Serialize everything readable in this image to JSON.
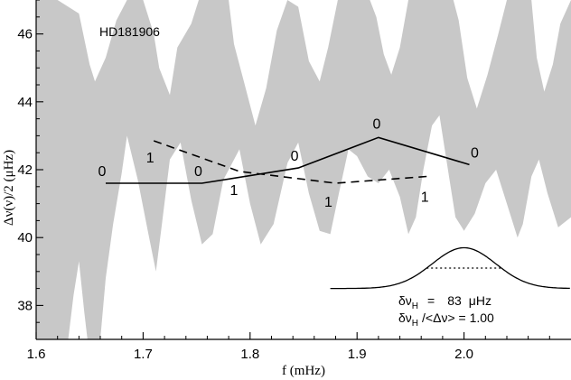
{
  "chart_data": {
    "type": "line",
    "title": "HD181906",
    "xlabel": "f (mHz)",
    "ylabel": "Δν(ν)/2 (μHz)",
    "xlim": [
      1.6,
      2.1
    ],
    "ylim": [
      37.0,
      47.0
    ],
    "x_ticks": [
      1.6,
      1.7,
      1.8,
      1.9,
      2.0
    ],
    "x_tick_labels": [
      "1.6",
      "1.7",
      "1.8",
      "1.9",
      "2.0"
    ],
    "y_ticks": [
      38,
      40,
      42,
      44,
      46
    ],
    "y_tick_labels": [
      "38",
      "40",
      "42",
      "44",
      "46"
    ],
    "shaded_band": {
      "color": "#c8c8c8",
      "upper": [
        [
          1.6,
          47.0
        ],
        [
          1.62,
          47.0
        ],
        [
          1.64,
          46.6
        ],
        [
          1.65,
          45.1
        ],
        [
          1.655,
          44.6
        ],
        [
          1.665,
          45.3
        ],
        [
          1.675,
          46.4
        ],
        [
          1.685,
          47.0
        ],
        [
          1.7,
          47.0
        ],
        [
          1.71,
          46.0
        ],
        [
          1.715,
          45.0
        ],
        [
          1.725,
          44.2
        ],
        [
          1.732,
          45.6
        ],
        [
          1.745,
          46.3
        ],
        [
          1.752,
          47.0
        ],
        [
          1.78,
          47.0
        ],
        [
          1.785,
          45.7
        ],
        [
          1.795,
          44.5
        ],
        [
          1.805,
          43.3
        ],
        [
          1.815,
          44.4
        ],
        [
          1.825,
          46.1
        ],
        [
          1.835,
          47.0
        ],
        [
          1.845,
          46.8
        ],
        [
          1.855,
          45.2
        ],
        [
          1.865,
          44.6
        ],
        [
          1.873,
          45.6
        ],
        [
          1.882,
          47.0
        ],
        [
          1.912,
          47.0
        ],
        [
          1.918,
          46.5
        ],
        [
          1.925,
          45.4
        ],
        [
          1.932,
          44.8
        ],
        [
          1.94,
          45.6
        ],
        [
          1.948,
          47.0
        ],
        [
          1.99,
          47.0
        ],
        [
          1.995,
          46.4
        ],
        [
          2.003,
          44.7
        ],
        [
          2.012,
          43.8
        ],
        [
          2.022,
          44.8
        ],
        [
          2.032,
          46.0
        ],
        [
          2.04,
          47.0
        ],
        [
          2.063,
          47.0
        ],
        [
          2.068,
          45.3
        ],
        [
          2.075,
          44.3
        ],
        [
          2.083,
          45.1
        ],
        [
          2.09,
          46.3
        ],
        [
          2.1,
          47.0
        ]
      ],
      "lower": [
        [
          1.6,
          37.0
        ],
        [
          1.63,
          37.0
        ],
        [
          1.635,
          38.3
        ],
        [
          1.64,
          39.3
        ],
        [
          1.645,
          37.8
        ],
        [
          1.648,
          37.0
        ],
        [
          1.66,
          37.0
        ],
        [
          1.665,
          38.8
        ],
        [
          1.672,
          40.4
        ],
        [
          1.68,
          41.9
        ],
        [
          1.685,
          43.0
        ],
        [
          1.695,
          41.7
        ],
        [
          1.705,
          40.1
        ],
        [
          1.712,
          39.0
        ],
        [
          1.718,
          40.5
        ],
        [
          1.725,
          42.3
        ],
        [
          1.735,
          42.8
        ],
        [
          1.745,
          41.1
        ],
        [
          1.755,
          39.8
        ],
        [
          1.765,
          40.1
        ],
        [
          1.775,
          41.7
        ],
        [
          1.79,
          42.6
        ],
        [
          1.8,
          41.0
        ],
        [
          1.81,
          39.8
        ],
        [
          1.822,
          40.4
        ],
        [
          1.835,
          42.2
        ],
        [
          1.845,
          42.8
        ],
        [
          1.855,
          41.3
        ],
        [
          1.865,
          40.2
        ],
        [
          1.875,
          40.1
        ],
        [
          1.883,
          41.3
        ],
        [
          1.892,
          42.6
        ],
        [
          1.9,
          42.4
        ],
        [
          1.91,
          41.8
        ],
        [
          1.92,
          41.6
        ],
        [
          1.93,
          42.0
        ],
        [
          1.94,
          41.2
        ],
        [
          1.948,
          40.1
        ],
        [
          1.955,
          40.6
        ],
        [
          1.962,
          42.0
        ],
        [
          1.97,
          43.3
        ],
        [
          1.977,
          43.6
        ],
        [
          1.985,
          42.0
        ],
        [
          1.992,
          40.6
        ],
        [
          2.0,
          40.2
        ],
        [
          2.01,
          40.7
        ],
        [
          2.02,
          41.6
        ],
        [
          2.03,
          42.0
        ],
        [
          2.04,
          41.0
        ],
        [
          2.05,
          40.0
        ],
        [
          2.055,
          40.4
        ],
        [
          2.063,
          41.8
        ],
        [
          2.07,
          42.3
        ],
        [
          2.078,
          41.3
        ],
        [
          2.088,
          40.3
        ],
        [
          2.1,
          40.6
        ]
      ]
    },
    "series": [
      {
        "label": "0",
        "style": "solid",
        "x": [
          1.665,
          1.755,
          1.845,
          1.92,
          2.005
        ],
        "y": [
          41.6,
          41.6,
          42.05,
          42.95,
          42.15
        ],
        "point_labels": [
          "0",
          "0",
          "0",
          "0",
          "0"
        ]
      },
      {
        "label": "1",
        "style": "dashed",
        "x": [
          1.71,
          1.79,
          1.88,
          1.965
        ],
        "y": [
          42.85,
          41.95,
          41.6,
          41.8
        ],
        "point_labels": [
          "1",
          "1",
          "1",
          "1"
        ]
      }
    ],
    "window_function": {
      "x_start": 1.875,
      "x_end": 2.1,
      "center": 2.0,
      "baseline": 38.5,
      "peak": 39.7,
      "half_level": 39.1,
      "half_width_start": 1.965,
      "half_width_end": 2.035
    },
    "annotations": {
      "line1_label": "δν",
      "line1_sub": "H",
      "line1_eq": "=",
      "line1_value": "83",
      "line1_unit": "μHz",
      "line2_label": "δν",
      "line2_sub": "H",
      "line2_rest": "/<Δν> = 1.00"
    }
  }
}
